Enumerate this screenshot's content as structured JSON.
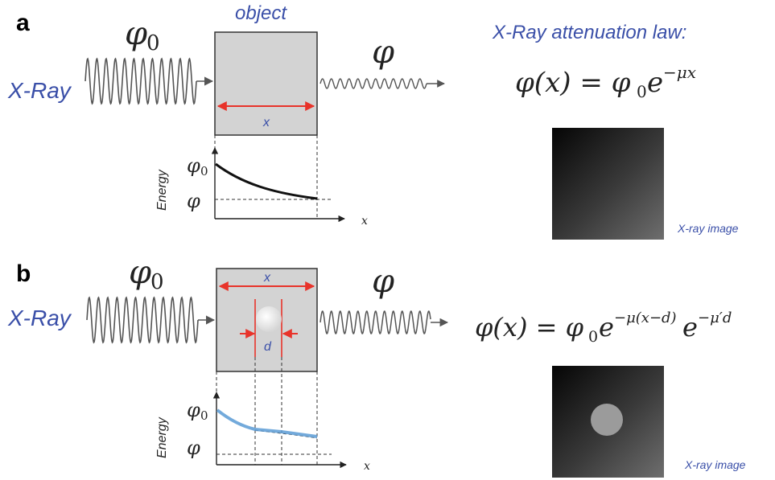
{
  "panel_a": {
    "label": "a",
    "object_title": "object",
    "source_label": "X-Ray",
    "phi0": "φ0",
    "phi": "φ",
    "width_label": "x",
    "law_title": "X-Ray attenuation law:",
    "equation_lhs": "φ(x) = φ",
    "equation_sub": "0",
    "equation_e": "e",
    "equation_exp": "−μx",
    "axis_ylabel": "Energy",
    "axis_xlabel": "x",
    "axis_phi0": "φ0",
    "axis_phi": "φ",
    "image_caption": "X-ray image"
  },
  "panel_b": {
    "label": "b",
    "source_label": "X-Ray",
    "phi0": "φ0",
    "phi": "φ",
    "width_label": "x",
    "inclusion_label": "d",
    "equation_lhs": "φ(x) = φ",
    "equation_sub": "0",
    "equation_e1": "e",
    "equation_exp1": "−μ(x−d)",
    "equation_e2": "e",
    "equation_exp2": "−μ′d",
    "axis_ylabel": "Energy",
    "axis_xlabel": "x",
    "axis_phi0": "φ0",
    "axis_phi": "φ",
    "image_caption": "X-ray image"
  },
  "colors": {
    "label_blue": "#3a4fa8",
    "dimension_red": "#e8332a",
    "object_gray": "#d3d3d3",
    "curve_blue": "#5b9bd5"
  }
}
